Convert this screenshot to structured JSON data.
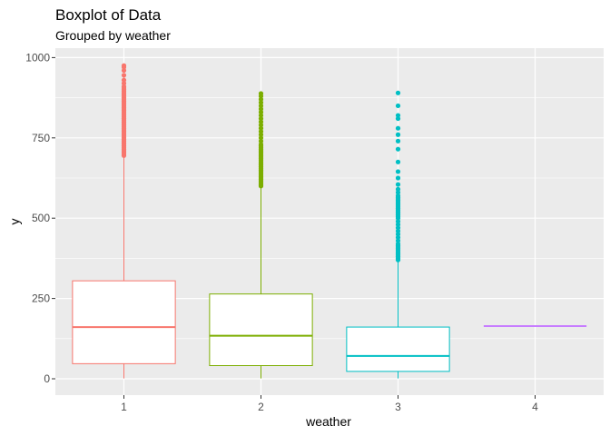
{
  "chart_data": {
    "type": "boxplot",
    "title": "Boxplot of Data",
    "subtitle": "Grouped by weather",
    "xlabel": "weather",
    "ylabel": "y",
    "categories": [
      "1",
      "2",
      "3",
      "4"
    ],
    "ylim": [
      -35,
      1000
    ],
    "yticks": [
      0,
      250,
      500,
      750,
      1000
    ],
    "ytick_labels": [
      "0",
      "250",
      "500",
      "750",
      "1000"
    ],
    "grid": true,
    "colors": {
      "1": "#F8766D",
      "2": "#7CAE00",
      "3": "#00BFC4",
      "4": "#C77CFF",
      "panel": "#EBEBEB",
      "grid": "#FFFFFF"
    },
    "boxes": [
      {
        "category": "1",
        "min": 1,
        "q1": 47,
        "median": 161,
        "q3": 305,
        "max": 690,
        "outliers": [
          695,
          700,
          705,
          710,
          715,
          720,
          725,
          730,
          735,
          740,
          745,
          750,
          755,
          760,
          765,
          770,
          775,
          780,
          785,
          790,
          795,
          800,
          805,
          810,
          815,
          820,
          825,
          830,
          835,
          840,
          845,
          850,
          855,
          860,
          865,
          870,
          875,
          880,
          885,
          890,
          895,
          900,
          905,
          910,
          920,
          930,
          945,
          960,
          970,
          975
        ]
      },
      {
        "category": "2",
        "min": 1,
        "q1": 41,
        "median": 134,
        "q3": 264,
        "max": 598,
        "outliers": [
          600,
          605,
          610,
          615,
          620,
          625,
          630,
          635,
          640,
          645,
          650,
          655,
          660,
          665,
          670,
          675,
          680,
          685,
          690,
          695,
          700,
          705,
          710,
          715,
          720,
          725,
          730,
          740,
          750,
          760,
          770,
          780,
          790,
          800,
          810,
          820,
          830,
          840,
          850,
          860,
          870,
          880,
          888
        ]
      },
      {
        "category": "3",
        "min": 1,
        "q1": 23,
        "median": 71,
        "q3": 161,
        "max": 365,
        "outliers": [
          370,
          375,
          380,
          385,
          390,
          395,
          400,
          405,
          410,
          415,
          420,
          430,
          440,
          450,
          460,
          470,
          480,
          490,
          500,
          505,
          510,
          515,
          520,
          525,
          530,
          535,
          540,
          545,
          550,
          555,
          560,
          565,
          570,
          580,
          590,
          605,
          625,
          645,
          675,
          715,
          740,
          760,
          780,
          810,
          820,
          850,
          890
        ]
      },
      {
        "category": "4",
        "min": 164,
        "q1": 164,
        "median": 164,
        "q3": 164,
        "max": 164,
        "outliers": []
      }
    ]
  }
}
